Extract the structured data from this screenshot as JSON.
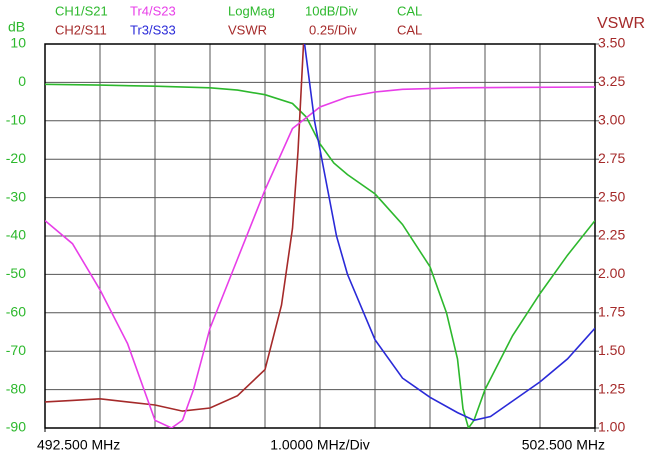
{
  "chart_data": {
    "type": "line",
    "y_label": "dB",
    "y2_label": "VSWR",
    "x_label": "1.0000 MHz/Div",
    "xlim": [
      492.5,
      502.5
    ],
    "xticks": [
      {
        "value": 492.5,
        "label": "492.500 MHz"
      },
      {
        "value": 502.5,
        "label": "502.500 MHz"
      }
    ],
    "ylim": [
      -90,
      10
    ],
    "yticks": [
      10,
      0,
      -10,
      -20,
      -30,
      -40,
      -50,
      -60,
      -70,
      -80,
      -90
    ],
    "y2lim": [
      1.0,
      3.5
    ],
    "y2ticks": [
      {
        "value": 3.5,
        "label": "3.50"
      },
      {
        "value": 3.25,
        "label": "3.25"
      },
      {
        "value": 3.0,
        "label": "3.00"
      },
      {
        "value": 2.75,
        "label": "2.75"
      },
      {
        "value": 2.5,
        "label": "2.50"
      },
      {
        "value": 2.25,
        "label": "2.25"
      },
      {
        "value": 2.0,
        "label": "2.00"
      },
      {
        "value": 1.75,
        "label": "1.75"
      },
      {
        "value": 1.5,
        "label": "1.50"
      },
      {
        "value": 1.25,
        "label": "1.25"
      },
      {
        "value": 1.0,
        "label": "1.00"
      }
    ],
    "grid": true,
    "y_color": "#2db82d",
    "y2_color": "#a52a2a",
    "channels": [
      {
        "format": "LogMag",
        "scale": "10dB/Div",
        "status": "CAL",
        "color": "#2db82d"
      },
      {
        "format": "VSWR",
        "scale": "0.25/Div",
        "status": "CAL",
        "color": "#a52a2a"
      }
    ],
    "series": [
      {
        "name": "CH1/S21",
        "color": "#2db82d",
        "x": [
          492.5,
          493.5,
          494.5,
          495.5,
          496,
          496.5,
          497,
          497.25,
          497.5,
          497.75,
          498,
          498.5,
          499,
          499.5,
          499.8,
          500,
          500.1,
          500.2,
          500.3,
          500.5,
          501,
          501.5,
          502,
          502.5
        ],
        "values": [
          -0.5,
          -0.7,
          -1,
          -1.4,
          -2,
          -3.2,
          -5.5,
          -9,
          -16,
          -21,
          -24,
          -29,
          -37,
          -48,
          -60,
          -72,
          -85,
          -90,
          -88,
          -80,
          -66,
          -55,
          -45,
          -36
        ]
      },
      {
        "name": "CH2/S11",
        "color": "#a52a2a",
        "axis": "y2",
        "x": [
          492.5,
          493,
          493.5,
          494,
          494.5,
          495,
          495.5,
          496,
          496.5,
          496.8,
          497,
          497.1,
          497.2
        ],
        "values": [
          1.17,
          1.18,
          1.19,
          1.17,
          1.15,
          1.11,
          1.13,
          1.21,
          1.38,
          1.8,
          2.3,
          2.8,
          3.5
        ]
      },
      {
        "name": "Tr4/S23",
        "color": "#e83ee8",
        "x": [
          492.5,
          493,
          493.5,
          494,
          494.3,
          494.5,
          494.8,
          495,
          495.2,
          495.5,
          496,
          496.5,
          497,
          497.5,
          498,
          498.5,
          499,
          500,
          501,
          502.5
        ],
        "values": [
          -36,
          -42,
          -54,
          -68,
          -80,
          -88,
          -90,
          -88,
          -80,
          -64,
          -46,
          -28,
          -12,
          -6.4,
          -3.8,
          -2.5,
          -1.8,
          -1.4,
          -1.3,
          -1.2
        ]
      },
      {
        "name": "Tr3/S33",
        "color": "#2a2ad8",
        "x": [
          497.22,
          497.4,
          497.6,
          497.8,
          498,
          498.5,
          499,
          499.5,
          500,
          500.3,
          500.6,
          501,
          501.5,
          502,
          502.5
        ],
        "values": [
          10,
          -10,
          -25,
          -40,
          -50,
          -67,
          -77,
          -82,
          -86,
          -88,
          -87,
          -83,
          -78,
          -72,
          -64
        ]
      }
    ]
  }
}
